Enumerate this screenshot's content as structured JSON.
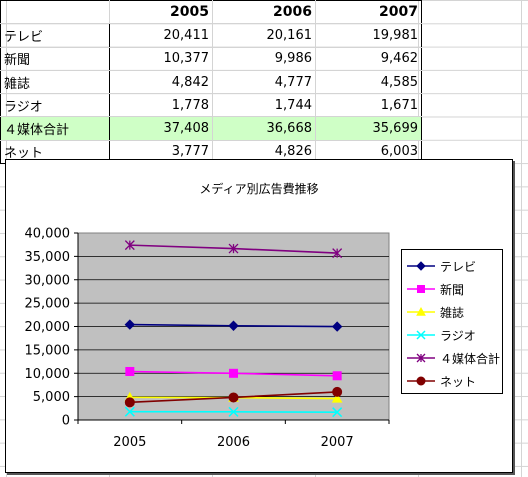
{
  "table": {
    "headers": [
      "",
      "2005",
      "2006",
      "2007"
    ],
    "rows": [
      {
        "label": "テレビ",
        "values": [
          "20,411",
          "20,161",
          "19,981"
        ]
      },
      {
        "label": "新聞",
        "values": [
          "10,377",
          "9,986",
          "9,462"
        ]
      },
      {
        "label": "雑誌",
        "values": [
          "4,842",
          "4,777",
          "4,585"
        ]
      },
      {
        "label": "ラジオ",
        "values": [
          "1,778",
          "1,744",
          "1,671"
        ]
      },
      {
        "label": "４媒体合計",
        "values": [
          "37,408",
          "36,668",
          "35,699"
        ]
      },
      {
        "label": "ネット",
        "values": [
          "3,777",
          "4,826",
          "6,003"
        ]
      }
    ],
    "total_row_color": "#cfffc6"
  },
  "chart_data": {
    "type": "line",
    "title": "メディア別広告費推移",
    "categories": [
      "2005",
      "2006",
      "2007"
    ],
    "ylim": [
      0,
      40000
    ],
    "yticks": [
      0,
      5000,
      10000,
      15000,
      20000,
      25000,
      30000,
      35000,
      40000
    ],
    "ytick_labels": [
      "0",
      "5,000",
      "10,000",
      "15,000",
      "20,000",
      "25,000",
      "30,000",
      "35,000",
      "40,000"
    ],
    "grid": "horizontal",
    "plot_background": "#c0c0c0",
    "legend_position": "right",
    "series": [
      {
        "name": "テレビ",
        "values": [
          20411,
          20161,
          19981
        ],
        "color": "#000080",
        "marker": "diamond"
      },
      {
        "name": "新聞",
        "values": [
          10377,
          9986,
          9462
        ],
        "color": "#ff00ff",
        "marker": "square"
      },
      {
        "name": "雑誌",
        "values": [
          4842,
          4777,
          4585
        ],
        "color": "#ffff00",
        "marker": "triangle"
      },
      {
        "name": "ラジオ",
        "values": [
          1778,
          1744,
          1671
        ],
        "color": "#00ffff",
        "marker": "x"
      },
      {
        "name": "４媒体合計",
        "values": [
          37408,
          36668,
          35699
        ],
        "color": "#800080",
        "marker": "star"
      },
      {
        "name": "ネット",
        "values": [
          3777,
          4826,
          6003
        ],
        "color": "#800000",
        "marker": "circle"
      }
    ]
  }
}
